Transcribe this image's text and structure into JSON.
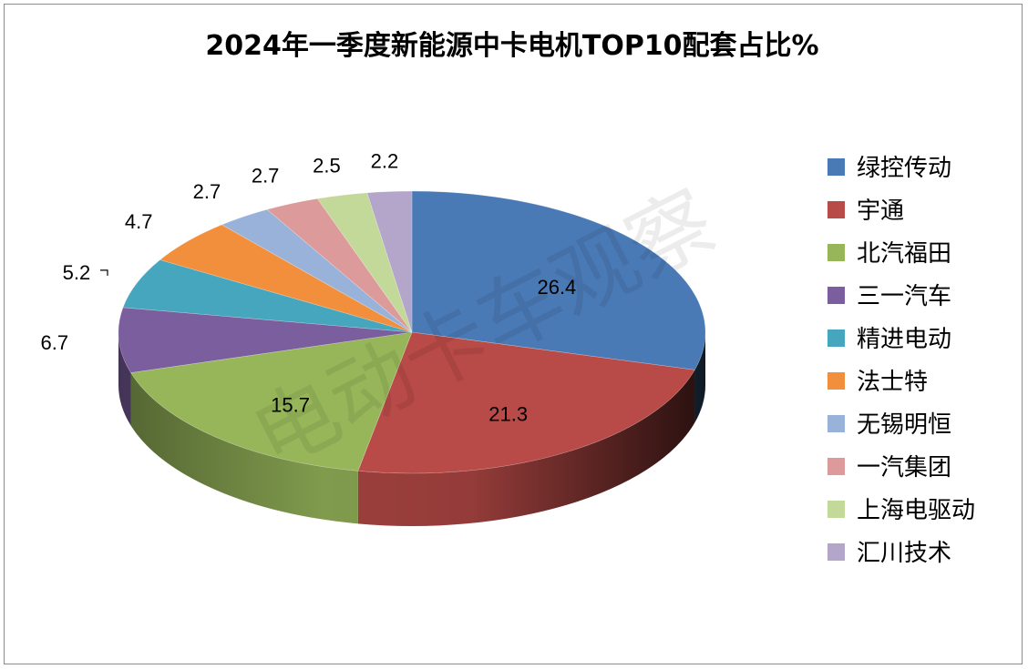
{
  "chart_data": {
    "type": "pie",
    "title": "2024年一季度新能源中卡电机TOP10配套占比%",
    "watermark": "电动卡车观察",
    "categories": [
      "绿控传动",
      "宇通",
      "北汽福田",
      "三一汽车",
      "精进电动",
      "法士特",
      "无锡明恒",
      "一汽集团",
      "上海电驱动",
      "汇川技术"
    ],
    "values": [
      26.4,
      21.3,
      15.7,
      6.7,
      5.2,
      4.7,
      2.7,
      2.7,
      2.5,
      2.2
    ],
    "labels": [
      "26.4",
      "21.3",
      "15.7",
      "6.7",
      "5.2",
      "4.7",
      "2.7",
      "2.7",
      "2.5",
      "2.2"
    ],
    "colors": [
      "#4a7ab5",
      "#b84a47",
      "#97b65a",
      "#7a5e9e",
      "#46a6bd",
      "#f28f3d",
      "#98b2da",
      "#dc9b9a",
      "#c3d99a",
      "#b4a6ca"
    ],
    "legend_position": "right",
    "style": "3d-pie"
  }
}
